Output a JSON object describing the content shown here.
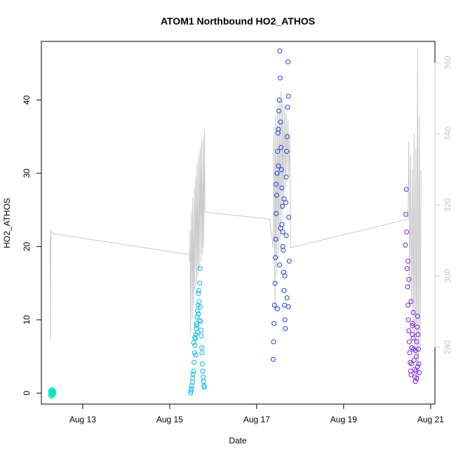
{
  "chart_data": {
    "type": "scatter",
    "title": "ATOM1 Northbound HO2_ATHOS",
    "xlabel": "Date",
    "ylabel": "HO2_ATHOS",
    "x_ticks": [
      "Aug 13",
      "Aug 15",
      "Aug 17",
      "Aug 19",
      "Aug 21"
    ],
    "x_tick_values": [
      13,
      15,
      17,
      19,
      21
    ],
    "xlim": [
      12.05,
      21.1
    ],
    "y_ticks": [
      0,
      10,
      20,
      30,
      40
    ],
    "ylim": [
      -1.5,
      48
    ],
    "y2_ticks": [
      280,
      300,
      320,
      340,
      360
    ],
    "y2lim": [
      264,
      366
    ],
    "grid": false,
    "colors": {
      "series_aug12": "#00e6b8",
      "series_aug15": "#00b4f0",
      "series_aug17": "#1a3cf0",
      "series_aug20": "#7a1ee8",
      "secondary_line": "#c8c8c8",
      "axis": "#000000",
      "secondary_axis": "#c8c8c8"
    },
    "series": [
      {
        "color": "#00e6b8",
        "x": [
          12.26,
          12.26,
          12.27,
          12.27,
          12.28,
          12.28,
          12.29,
          12.29,
          12.3,
          12.3,
          12.31,
          12.31,
          12.32,
          12.32,
          12.33,
          12.33,
          12.34
        ],
        "y": [
          0.2,
          -0.3,
          0.4,
          -0.1,
          0.1,
          -0.4,
          0.3,
          0.0,
          -0.2,
          0.5,
          0.2,
          -0.3,
          0.1,
          0.4,
          -0.1,
          0.2,
          0.0
        ]
      },
      {
        "color": "#00b4f0",
        "x": [
          15.48,
          15.49,
          15.5,
          15.51,
          15.52,
          15.53,
          15.54,
          15.55,
          15.56,
          15.57,
          15.58,
          15.59,
          15.6,
          15.61,
          15.62,
          15.63,
          15.64,
          15.65,
          15.66,
          15.67,
          15.68,
          15.69,
          15.7,
          15.71,
          15.72,
          15.73,
          15.74,
          15.75,
          15.76,
          15.77,
          15.78,
          15.79,
          15.8,
          15.55,
          15.58,
          15.62,
          15.66,
          15.7,
          15.74,
          15.6,
          15.64,
          15.68
        ],
        "y": [
          0.0,
          0.3,
          0.6,
          1.0,
          1.5,
          2.0,
          2.6,
          3.0,
          4.2,
          5.5,
          6.5,
          7.4,
          8.0,
          8.8,
          9.5,
          10.4,
          11.2,
          12.0,
          13.6,
          14.0,
          12.5,
          15.0,
          17.0,
          9.8,
          8.6,
          7.8,
          5.5,
          4.0,
          3.0,
          2.2,
          1.6,
          1.0,
          0.8,
          6.9,
          7.6,
          9.2,
          10.8,
          11.8,
          6.2,
          5.2,
          8.3,
          9.9
        ]
      },
      {
        "color": "#1a3cf0",
        "x": [
          17.38,
          17.39,
          17.4,
          17.41,
          17.42,
          17.43,
          17.44,
          17.45,
          17.46,
          17.47,
          17.48,
          17.49,
          17.5,
          17.51,
          17.52,
          17.53,
          17.54,
          17.55,
          17.56,
          17.57,
          17.58,
          17.59,
          17.6,
          17.61,
          17.62,
          17.63,
          17.64,
          17.65,
          17.66,
          17.67,
          17.68,
          17.69,
          17.7,
          17.71,
          17.72,
          17.73,
          17.74,
          17.75,
          17.45,
          17.5,
          17.55,
          17.6,
          17.65,
          17.7,
          17.48,
          17.53,
          17.58,
          17.63,
          17.68,
          17.73
        ],
        "y": [
          4.6,
          7.0,
          9.5,
          12.0,
          15.0,
          18.5,
          21.0,
          24.5,
          27.0,
          30.0,
          33.0,
          35.5,
          36.0,
          38.5,
          40.0,
          46.7,
          43.0,
          37.0,
          33.5,
          30.5,
          28.0,
          25.5,
          22.0,
          19.5,
          16.5,
          14.0,
          12.0,
          10.0,
          8.8,
          26.0,
          29.5,
          33.0,
          35.0,
          39.0,
          45.2,
          40.5,
          24.0,
          18.0,
          28.5,
          31.0,
          22.5,
          20.0,
          16.0,
          13.0,
          11.5,
          17.5,
          23.0,
          26.5,
          21.5,
          11.8
        ]
      },
      {
        "color": "#7a1ee8",
        "x": [
          20.42,
          20.43,
          20.44,
          20.45,
          20.46,
          20.47,
          20.48,
          20.49,
          20.5,
          20.51,
          20.52,
          20.53,
          20.54,
          20.55,
          20.56,
          20.57,
          20.58,
          20.59,
          20.6,
          20.61,
          20.62,
          20.63,
          20.64,
          20.65,
          20.66,
          20.67,
          20.68,
          20.69,
          20.7,
          20.71,
          20.72,
          20.73,
          20.74,
          20.5,
          20.55,
          20.6,
          20.65,
          20.7,
          20.48,
          20.58,
          20.68
        ],
        "y": [
          20.2,
          24.4,
          27.8,
          22.0,
          17.0,
          14.5,
          12.0,
          10.0,
          8.5,
          7.0,
          5.5,
          4.2,
          3.0,
          2.5,
          4.0,
          6.2,
          8.0,
          9.5,
          7.5,
          6.0,
          4.5,
          3.2,
          2.2,
          1.6,
          3.0,
          5.0,
          7.0,
          9.0,
          10.5,
          8.0,
          6.0,
          4.0,
          2.8,
          15.5,
          12.5,
          11.0,
          5.8,
          3.6,
          18.0,
          9.2,
          2.0
        ]
      }
    ],
    "secondary_line": {
      "axis": "right",
      "color": "#c8c8c8",
      "x": [
        12.25,
        12.26,
        12.27,
        12.29,
        12.3,
        15.45,
        15.46,
        15.47,
        15.48,
        15.5,
        15.52,
        15.53,
        15.55,
        15.57,
        15.58,
        15.6,
        15.62,
        15.63,
        15.65,
        15.67,
        15.68,
        15.7,
        15.72,
        15.73,
        15.75,
        15.77,
        15.78,
        15.8,
        15.81,
        17.3,
        17.38,
        17.4,
        17.42,
        17.44,
        17.46,
        17.48,
        17.5,
        17.52,
        17.54,
        17.56,
        17.58,
        17.6,
        17.62,
        17.64,
        17.66,
        17.68,
        17.7,
        17.72,
        17.74,
        17.76,
        17.78,
        20.48,
        20.5,
        20.52,
        20.54,
        20.56,
        20.58,
        20.6,
        20.62,
        20.64,
        20.66,
        20.68,
        20.7,
        20.72,
        20.74,
        20.76,
        20.78
      ],
      "y": [
        311,
        282,
        313,
        312,
        312,
        306,
        304,
        313,
        284,
        318,
        288,
        322,
        292,
        325,
        296,
        328,
        298,
        332,
        300,
        334,
        302,
        336,
        304,
        338,
        306,
        339,
        308,
        341,
        318,
        316,
        308,
        342,
        290,
        345,
        300,
        348,
        305,
        350,
        310,
        352,
        315,
        350,
        320,
        348,
        325,
        346,
        330,
        344,
        328,
        340,
        308,
        316,
        338,
        296,
        334,
        292,
        330,
        282,
        340,
        278,
        336,
        272,
        364,
        270,
        345,
        280,
        330
      ]
    }
  }
}
